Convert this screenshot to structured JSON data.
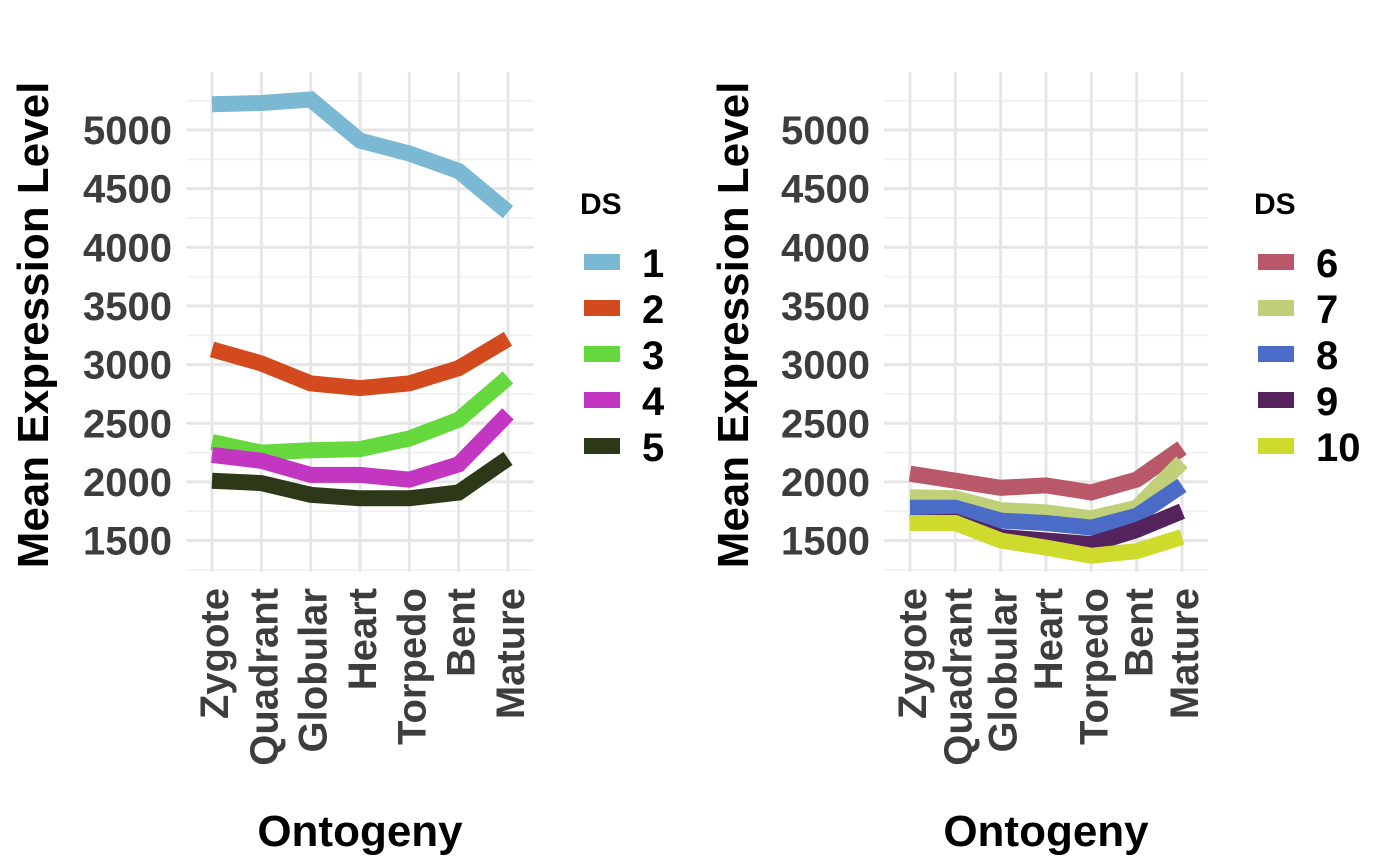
{
  "chart_data": [
    {
      "type": "line",
      "xlabel": "Ontogeny",
      "ylabel": "Mean Expression Level",
      "categories": [
        "Zygote",
        "Quadrant",
        "Globular",
        "Heart",
        "Torpedo",
        "Bent",
        "Mature"
      ],
      "y_ticks": [
        1500,
        2000,
        2500,
        3000,
        3500,
        4000,
        4500,
        5000
      ],
      "ylim": [
        1230,
        5500
      ],
      "grid": true,
      "legend": {
        "title": "DS",
        "position": "right"
      },
      "series": [
        {
          "name": "1",
          "color": "#7AB8D4",
          "values": [
            5220,
            5230,
            5260,
            4910,
            4800,
            4650,
            4300
          ]
        },
        {
          "name": "2",
          "color": "#D24A1E",
          "values": [
            3130,
            3010,
            2840,
            2800,
            2840,
            2970,
            3220
          ]
        },
        {
          "name": "3",
          "color": "#64D83C",
          "values": [
            2340,
            2250,
            2270,
            2280,
            2370,
            2530,
            2890
          ]
        },
        {
          "name": "4",
          "color": "#C236C2",
          "values": [
            2230,
            2180,
            2060,
            2060,
            2020,
            2150,
            2580
          ]
        },
        {
          "name": "5",
          "color": "#2C3818",
          "values": [
            2010,
            1990,
            1890,
            1860,
            1860,
            1910,
            2200
          ]
        }
      ]
    },
    {
      "type": "line",
      "xlabel": "Ontogeny",
      "ylabel": "Mean Expression Level",
      "categories": [
        "Zygote",
        "Quadrant",
        "Globular",
        "Heart",
        "Torpedo",
        "Bent",
        "Mature"
      ],
      "y_ticks": [
        1500,
        2000,
        2500,
        3000,
        3500,
        4000,
        4500,
        5000
      ],
      "ylim": [
        1230,
        5500
      ],
      "grid": true,
      "legend": {
        "title": "DS",
        "position": "right"
      },
      "series": [
        {
          "name": "6",
          "color": "#B85868",
          "values": [
            2070,
            2010,
            1950,
            1970,
            1910,
            2020,
            2290
          ]
        },
        {
          "name": "7",
          "color": "#C0D078",
          "values": [
            1870,
            1860,
            1760,
            1740,
            1690,
            1780,
            2170
          ]
        },
        {
          "name": "8",
          "color": "#4A6CC6",
          "values": [
            1780,
            1780,
            1670,
            1650,
            1610,
            1710,
            1970
          ]
        },
        {
          "name": "9",
          "color": "#54235E",
          "values": [
            1650,
            1660,
            1530,
            1500,
            1470,
            1590,
            1750
          ]
        },
        {
          "name": "10",
          "color": "#CEDB2C",
          "values": [
            1650,
            1650,
            1500,
            1440,
            1370,
            1410,
            1530
          ]
        }
      ]
    }
  ]
}
